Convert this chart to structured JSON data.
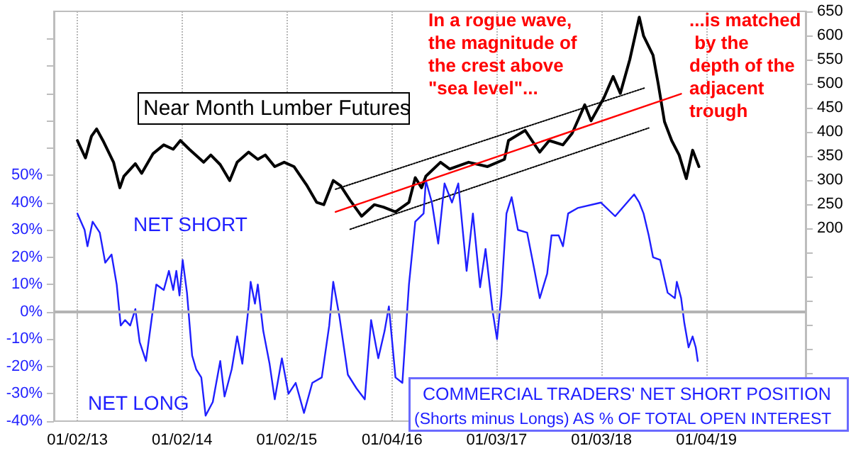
{
  "chart_data": {
    "type": "line",
    "title": "Near Month Lumber Futures",
    "annotations": [
      "In a rogue wave, the magnitude of the crest above \"sea level\"...",
      "...is matched by the depth of the adjacent trough",
      "NET SHORT",
      "NET LONG",
      "COMMERCIAL TRADERS' NET SHORT POSITION",
      "(Shorts minus Longs) AS % OF TOTAL OPEN INTEREST"
    ],
    "xlim": [
      "2012-10-12",
      "2019-12-16"
    ],
    "xticks": [
      {
        "value": "2013-01-02",
        "label": "01/02/13"
      },
      {
        "value": "2014-01-02",
        "label": "01/02/14"
      },
      {
        "value": "2015-01-02",
        "label": "01/02/15"
      },
      {
        "value": "2016-01-04",
        "label": "01/04/16"
      },
      {
        "value": "2017-01-03",
        "label": "01/03/17"
      },
      {
        "value": "2018-01-03",
        "label": "01/03/18"
      },
      {
        "value": "2019-01-04",
        "label": "01/04/19"
      }
    ],
    "ylim": [
      -40,
      110
    ],
    "yticks": [
      {
        "value": -40,
        "label": "-40%"
      },
      {
        "value": -30,
        "label": "-30%"
      },
      {
        "value": -20,
        "label": "-20%"
      },
      {
        "value": -10,
        "label": "-10%"
      },
      {
        "value": 0,
        "label": "0%"
      },
      {
        "value": 10,
        "label": "10%"
      },
      {
        "value": 20,
        "label": "20%"
      },
      {
        "value": 30,
        "label": "30%"
      },
      {
        "value": 40,
        "label": "40%"
      },
      {
        "value": 50,
        "label": "50%"
      },
      {
        "value": 60,
        "label": null
      },
      {
        "value": 70,
        "label": null
      },
      {
        "value": 80,
        "label": null
      },
      {
        "value": 90,
        "label": null
      },
      {
        "value": 100,
        "label": null
      }
    ],
    "y2lim": [
      -200,
      650
    ],
    "y2ticks": [
      {
        "value": -100,
        "label": null
      },
      {
        "value": -50,
        "label": null
      },
      {
        "value": 0,
        "label": null
      },
      {
        "value": 50,
        "label": null
      },
      {
        "value": 100,
        "label": null
      },
      {
        "value": 150,
        "label": null
      },
      200,
      250,
      300,
      350,
      400,
      450,
      500,
      550,
      600,
      650
    ],
    "grid": "x",
    "marker": "none",
    "ref_lines": [
      {
        "axis": "y",
        "value": 0,
        "color": "#b4b4b4"
      }
    ],
    "series": [
      {
        "color": "#000000",
        "axis": "y2",
        "line_style": "solid",
        "x": [
          "2013-01-02",
          "2013-01-30",
          "2013-02-20",
          "2013-03-10",
          "2013-04-01",
          "2013-05-08",
          "2013-05-30",
          "2013-06-13",
          "2013-07-23",
          "2013-08-14",
          "2013-09-23",
          "2013-10-30",
          "2013-12-02",
          "2013-12-27",
          "2014-01-27",
          "2014-03-18",
          "2014-04-12",
          "2014-05-15",
          "2014-06-17",
          "2014-07-13",
          "2014-08-22",
          "2014-09-23",
          "2014-10-19",
          "2014-11-21",
          "2014-12-24",
          "2015-01-27",
          "2015-03-14",
          "2015-04-16",
          "2015-05-11",
          "2015-06-13",
          "2015-07-09",
          "2015-08-11",
          "2015-09-20",
          "2015-11-03",
          "2015-12-05",
          "2016-01-16",
          "2016-03-03",
          "2016-03-25",
          "2016-04-16",
          "2016-05-01",
          "2016-06-21",
          "2016-07-23",
          "2016-09-27",
          "2016-12-02",
          "2017-01-30",
          "2017-02-13",
          "2017-04-12",
          "2017-06-02",
          "2017-07-05",
          "2017-08-22",
          "2017-09-23",
          "2017-11-06",
          "2017-11-28",
          "2018-01-12",
          "2018-02-13",
          "2018-03-10",
          "2018-04-12",
          "2018-05-15",
          "2018-05-30",
          "2018-07-02",
          "2018-07-20",
          "2018-08-11",
          "2018-09-05",
          "2018-10-01",
          "2018-10-26",
          "2018-11-17",
          "2018-12-09"
        ],
        "values": [
          382,
          346,
          391,
          406,
          382,
          337,
          284,
          308,
          334,
          314,
          355,
          373,
          364,
          382,
          364,
          337,
          352,
          332,
          299,
          337,
          358,
          343,
          352,
          328,
          337,
          328,
          288,
          254,
          249,
          299,
          288,
          258,
          225,
          249,
          244,
          234,
          254,
          305,
          284,
          308,
          337,
          323,
          337,
          328,
          343,
          382,
          403,
          358,
          382,
          373,
          397,
          456,
          423,
          471,
          515,
          480,
          550,
          638,
          599,
          559,
          500,
          421,
          382,
          352,
          303,
          362,
          328
        ]
      },
      {
        "color": "#1f1fff",
        "axis": "y",
        "line_style": "solid",
        "x": [
          "2013-01-02",
          "2013-01-27",
          "2013-02-06",
          "2013-02-24",
          "2013-03-21",
          "2013-04-09",
          "2013-05-01",
          "2013-05-19",
          "2013-06-02",
          "2013-06-17",
          "2013-07-05",
          "2013-07-23",
          "2013-08-07",
          "2013-08-29",
          "2013-09-16",
          "2013-10-04",
          "2013-10-30",
          "2013-11-17",
          "2013-12-02",
          "2013-12-13",
          "2013-12-24",
          "2014-01-04",
          "2014-01-19",
          "2014-02-06",
          "2014-02-20",
          "2014-03-10",
          "2014-03-25",
          "2014-04-19",
          "2014-05-15",
          "2014-05-30",
          "2014-06-24",
          "2014-07-13",
          "2014-07-31",
          "2014-08-22",
          "2014-08-29",
          "2014-09-13",
          "2014-09-23",
          "2014-10-12",
          "2014-11-03",
          "2014-11-21",
          "2014-12-16",
          "2015-01-08",
          "2015-02-02",
          "2015-03-03",
          "2015-04-01",
          "2015-05-04",
          "2015-05-30",
          "2015-06-13",
          "2015-07-05",
          "2015-08-03",
          "2015-09-02",
          "2015-10-01",
          "2015-10-23",
          "2015-11-17",
          "2015-12-09",
          "2015-12-24",
          "2016-01-16",
          "2016-02-09",
          "2016-03-03",
          "2016-03-25",
          "2016-04-23",
          "2016-05-01",
          "2016-05-22",
          "2016-06-13",
          "2016-07-05",
          "2016-07-31",
          "2016-08-22",
          "2016-09-20",
          "2016-10-12",
          "2016-11-06",
          "2016-11-25",
          "2016-12-20",
          "2017-01-04",
          "2017-01-19",
          "2017-02-06",
          "2017-02-24",
          "2017-03-18",
          "2017-04-19",
          "2017-05-15",
          "2017-06-02",
          "2017-06-28",
          "2017-07-13",
          "2017-08-07",
          "2017-08-22",
          "2017-09-09",
          "2017-10-12",
          "2018-01-01",
          "2018-02-20",
          "2018-04-27",
          "2018-05-15",
          "2018-05-30",
          "2018-06-17",
          "2018-07-02",
          "2018-07-27",
          "2018-08-22",
          "2018-09-16",
          "2018-09-23",
          "2018-10-08",
          "2018-10-19",
          "2018-11-03",
          "2018-11-17",
          "2018-11-28",
          "2018-12-05"
        ],
        "values": [
          36,
          30,
          24,
          33,
          29,
          18,
          21,
          10,
          -5,
          -3,
          -5,
          1,
          -11,
          -18,
          -4,
          10,
          8,
          15,
          8,
          15,
          6,
          19,
          7,
          -16,
          -21,
          -24,
          -38,
          -33,
          -18,
          -31,
          -21,
          -9,
          -19,
          2,
          11,
          3,
          10,
          -7,
          -19,
          -32,
          -17,
          -30,
          -26,
          -37,
          -26,
          -24,
          -5,
          11,
          -2,
          -23,
          -28,
          -32,
          -3,
          -17,
          -7,
          2,
          -24,
          -26,
          10,
          33,
          36,
          48,
          40,
          25,
          47,
          40,
          47,
          15,
          36,
          9,
          23,
          0,
          -10,
          6,
          36,
          42,
          30,
          29,
          15,
          5,
          14,
          28,
          28,
          24,
          36,
          38,
          40,
          35,
          43,
          40,
          36,
          28,
          20,
          19,
          7,
          5,
          11,
          5,
          -4,
          -13,
          -9,
          -13,
          -18
        ]
      },
      {
        "color": "#ff0000",
        "axis": "y2",
        "line_style": "solid",
        "x": [
          "2015-06-21",
          "2018-10-08"
        ],
        "values": [
          234,
          479
        ]
      },
      {
        "color": "#000000",
        "axis": "y2",
        "line_style": "dotted",
        "x": [
          "2015-06-21",
          "2018-06-02"
        ],
        "values": [
          281,
          491
        ]
      },
      {
        "color": "#000000",
        "axis": "y2",
        "line_style": "dotted",
        "x": [
          "2015-08-11",
          "2018-06-17"
        ],
        "values": [
          198,
          408
        ]
      }
    ]
  }
}
